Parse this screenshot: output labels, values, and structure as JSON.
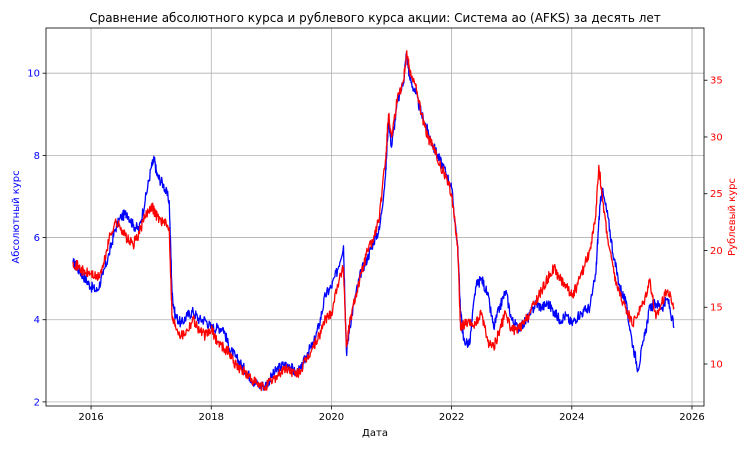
{
  "chart_data": {
    "type": "line",
    "title": "Сравнение абсолютного курса и рублевого курса акции: Система ао (AFKS) за десять лет",
    "xlabel": "Дата",
    "ylabel_left": "Абсолютный курс",
    "ylabel_right": "Рублевый курс",
    "xlim": [
      2015.25,
      2026.2
    ],
    "ylim_left": [
      1.9,
      11.1
    ],
    "ylim_right": [
      6.3,
      39.6
    ],
    "x_ticks": [
      2016,
      2018,
      2020,
      2022,
      2024,
      2026
    ],
    "x_tick_labels": [
      "2016",
      "2018",
      "2020",
      "2022",
      "2024",
      "2026"
    ],
    "y_ticks_left": [
      2,
      4,
      6,
      8,
      10
    ],
    "y_tick_labels_left": [
      "2",
      "4",
      "6",
      "8",
      "10"
    ],
    "y_ticks_right": [
      10,
      15,
      20,
      25,
      30,
      35
    ],
    "y_tick_labels_right": [
      "10",
      "15",
      "20",
      "25",
      "30",
      "35"
    ],
    "grid": true,
    "colors": {
      "left": "#0000ff",
      "right": "#ff0000",
      "grid": "#b0b0b0",
      "axes": "#000000"
    },
    "series": [
      {
        "axis": "left",
        "color": "#0000ff",
        "x": [
          2015.7,
          2015.8,
          2015.9,
          2016.0,
          2016.1,
          2016.2,
          2016.3,
          2016.4,
          2016.5,
          2016.6,
          2016.7,
          2016.8,
          2016.9,
          2017.0,
          2017.05,
          2017.1,
          2017.2,
          2017.3,
          2017.35,
          2017.4,
          2017.5,
          2017.6,
          2017.7,
          2017.8,
          2017.9,
          2018.0,
          2018.1,
          2018.2,
          2018.3,
          2018.4,
          2018.5,
          2018.6,
          2018.7,
          2018.8,
          2018.9,
          2019.0,
          2019.1,
          2019.2,
          2019.3,
          2019.4,
          2019.5,
          2019.6,
          2019.7,
          2019.8,
          2019.9,
          2020.0,
          2020.1,
          2020.2,
          2020.25,
          2020.3,
          2020.4,
          2020.5,
          2020.6,
          2020.7,
          2020.8,
          2020.9,
          2020.95,
          2021.0,
          2021.1,
          2021.2,
          2021.25,
          2021.3,
          2021.4,
          2021.5,
          2021.6,
          2021.7,
          2021.8,
          2021.9,
          2022.0,
          2022.1,
          2022.15,
          2022.2,
          2022.3,
          2022.4,
          2022.5,
          2022.6,
          2022.7,
          2022.8,
          2022.9,
          2023.0,
          2023.1,
          2023.2,
          2023.3,
          2023.4,
          2023.5,
          2023.6,
          2023.7,
          2023.8,
          2023.9,
          2024.0,
          2024.1,
          2024.2,
          2024.3,
          2024.4,
          2024.45,
          2024.5,
          2024.6,
          2024.7,
          2024.8,
          2024.9,
          2025.0,
          2025.1,
          2025.2,
          2025.3,
          2025.4,
          2025.5,
          2025.6,
          2025.7
        ],
        "y": [
          5.4,
          5.2,
          5.0,
          4.8,
          4.7,
          5.1,
          5.6,
          6.2,
          6.5,
          6.6,
          6.3,
          6.2,
          6.9,
          7.7,
          7.9,
          7.5,
          7.3,
          6.9,
          4.6,
          4.1,
          3.9,
          4.1,
          4.2,
          4.0,
          4.0,
          3.8,
          3.8,
          3.8,
          3.3,
          3.1,
          2.9,
          2.7,
          2.5,
          2.4,
          2.4,
          2.6,
          2.8,
          2.9,
          2.9,
          2.7,
          2.8,
          3.2,
          3.4,
          3.9,
          4.6,
          4.8,
          5.2,
          5.8,
          3.2,
          3.8,
          4.6,
          5.2,
          5.5,
          5.9,
          6.2,
          7.5,
          8.9,
          8.2,
          9.3,
          9.8,
          10.5,
          9.9,
          9.5,
          9.0,
          8.6,
          8.2,
          7.9,
          7.6,
          7.2,
          5.8,
          4.2,
          3.5,
          3.4,
          4.8,
          5.0,
          4.6,
          3.8,
          4.3,
          4.7,
          4.0,
          3.8,
          3.9,
          4.1,
          4.4,
          4.3,
          4.4,
          4.2,
          4.0,
          4.1,
          3.9,
          4.1,
          4.2,
          4.3,
          5.1,
          6.4,
          7.2,
          6.5,
          5.5,
          4.8,
          4.4,
          3.5,
          2.8,
          3.5,
          4.3,
          4.4,
          4.3,
          4.5,
          3.8
        ]
      },
      {
        "axis": "right",
        "color": "#ff0000",
        "x": [
          2015.7,
          2015.8,
          2015.9,
          2016.0,
          2016.1,
          2016.2,
          2016.3,
          2016.4,
          2016.5,
          2016.6,
          2016.7,
          2016.8,
          2016.9,
          2017.0,
          2017.05,
          2017.1,
          2017.2,
          2017.3,
          2017.35,
          2017.4,
          2017.5,
          2017.6,
          2017.7,
          2017.8,
          2017.9,
          2018.0,
          2018.1,
          2018.2,
          2018.3,
          2018.4,
          2018.5,
          2018.6,
          2018.7,
          2018.8,
          2018.9,
          2019.0,
          2019.1,
          2019.2,
          2019.3,
          2019.4,
          2019.5,
          2019.6,
          2019.7,
          2019.8,
          2019.9,
          2020.0,
          2020.1,
          2020.2,
          2020.25,
          2020.3,
          2020.4,
          2020.5,
          2020.6,
          2020.7,
          2020.8,
          2020.9,
          2020.95,
          2021.0,
          2021.1,
          2021.2,
          2021.25,
          2021.3,
          2021.4,
          2021.5,
          2021.6,
          2021.7,
          2021.8,
          2021.9,
          2022.0,
          2022.1,
          2022.15,
          2022.2,
          2022.3,
          2022.4,
          2022.5,
          2022.6,
          2022.7,
          2022.8,
          2022.9,
          2023.0,
          2023.1,
          2023.2,
          2023.3,
          2023.4,
          2023.5,
          2023.6,
          2023.7,
          2023.8,
          2023.9,
          2024.0,
          2024.1,
          2024.2,
          2024.3,
          2024.4,
          2024.45,
          2024.5,
          2024.6,
          2024.7,
          2024.8,
          2024.9,
          2025.0,
          2025.1,
          2025.2,
          2025.3,
          2025.4,
          2025.5,
          2025.6,
          2025.7
        ],
        "y": [
          19.0,
          18.5,
          18.0,
          18.0,
          17.5,
          18.5,
          21.0,
          22.5,
          22.0,
          21.0,
          20.5,
          21.5,
          23.0,
          24.0,
          23.5,
          23.0,
          22.5,
          22.0,
          14.0,
          13.5,
          12.5,
          13.0,
          14.0,
          13.0,
          12.5,
          13.0,
          12.0,
          11.5,
          11.0,
          10.0,
          9.5,
          9.0,
          8.5,
          8.0,
          8.0,
          8.5,
          9.0,
          9.5,
          9.5,
          9.0,
          9.5,
          10.5,
          11.5,
          12.5,
          14.0,
          14.5,
          17.0,
          18.5,
          11.5,
          13.5,
          16.0,
          18.0,
          20.0,
          21.0,
          23.0,
          28.0,
          32.0,
          30.0,
          33.5,
          35.0,
          37.5,
          36.0,
          34.5,
          32.0,
          30.0,
          29.0,
          27.5,
          26.5,
          25.0,
          20.5,
          13.0,
          13.5,
          13.5,
          13.5,
          14.5,
          12.0,
          11.5,
          13.0,
          14.5,
          13.0,
          13.0,
          13.5,
          14.5,
          15.5,
          16.5,
          17.5,
          18.5,
          17.5,
          17.0,
          16.0,
          17.0,
          18.5,
          20.0,
          23.0,
          27.5,
          25.0,
          21.0,
          18.0,
          16.0,
          15.0,
          13.5,
          14.5,
          15.5,
          17.5,
          14.0,
          15.5,
          16.5,
          15.0
        ]
      }
    ]
  }
}
